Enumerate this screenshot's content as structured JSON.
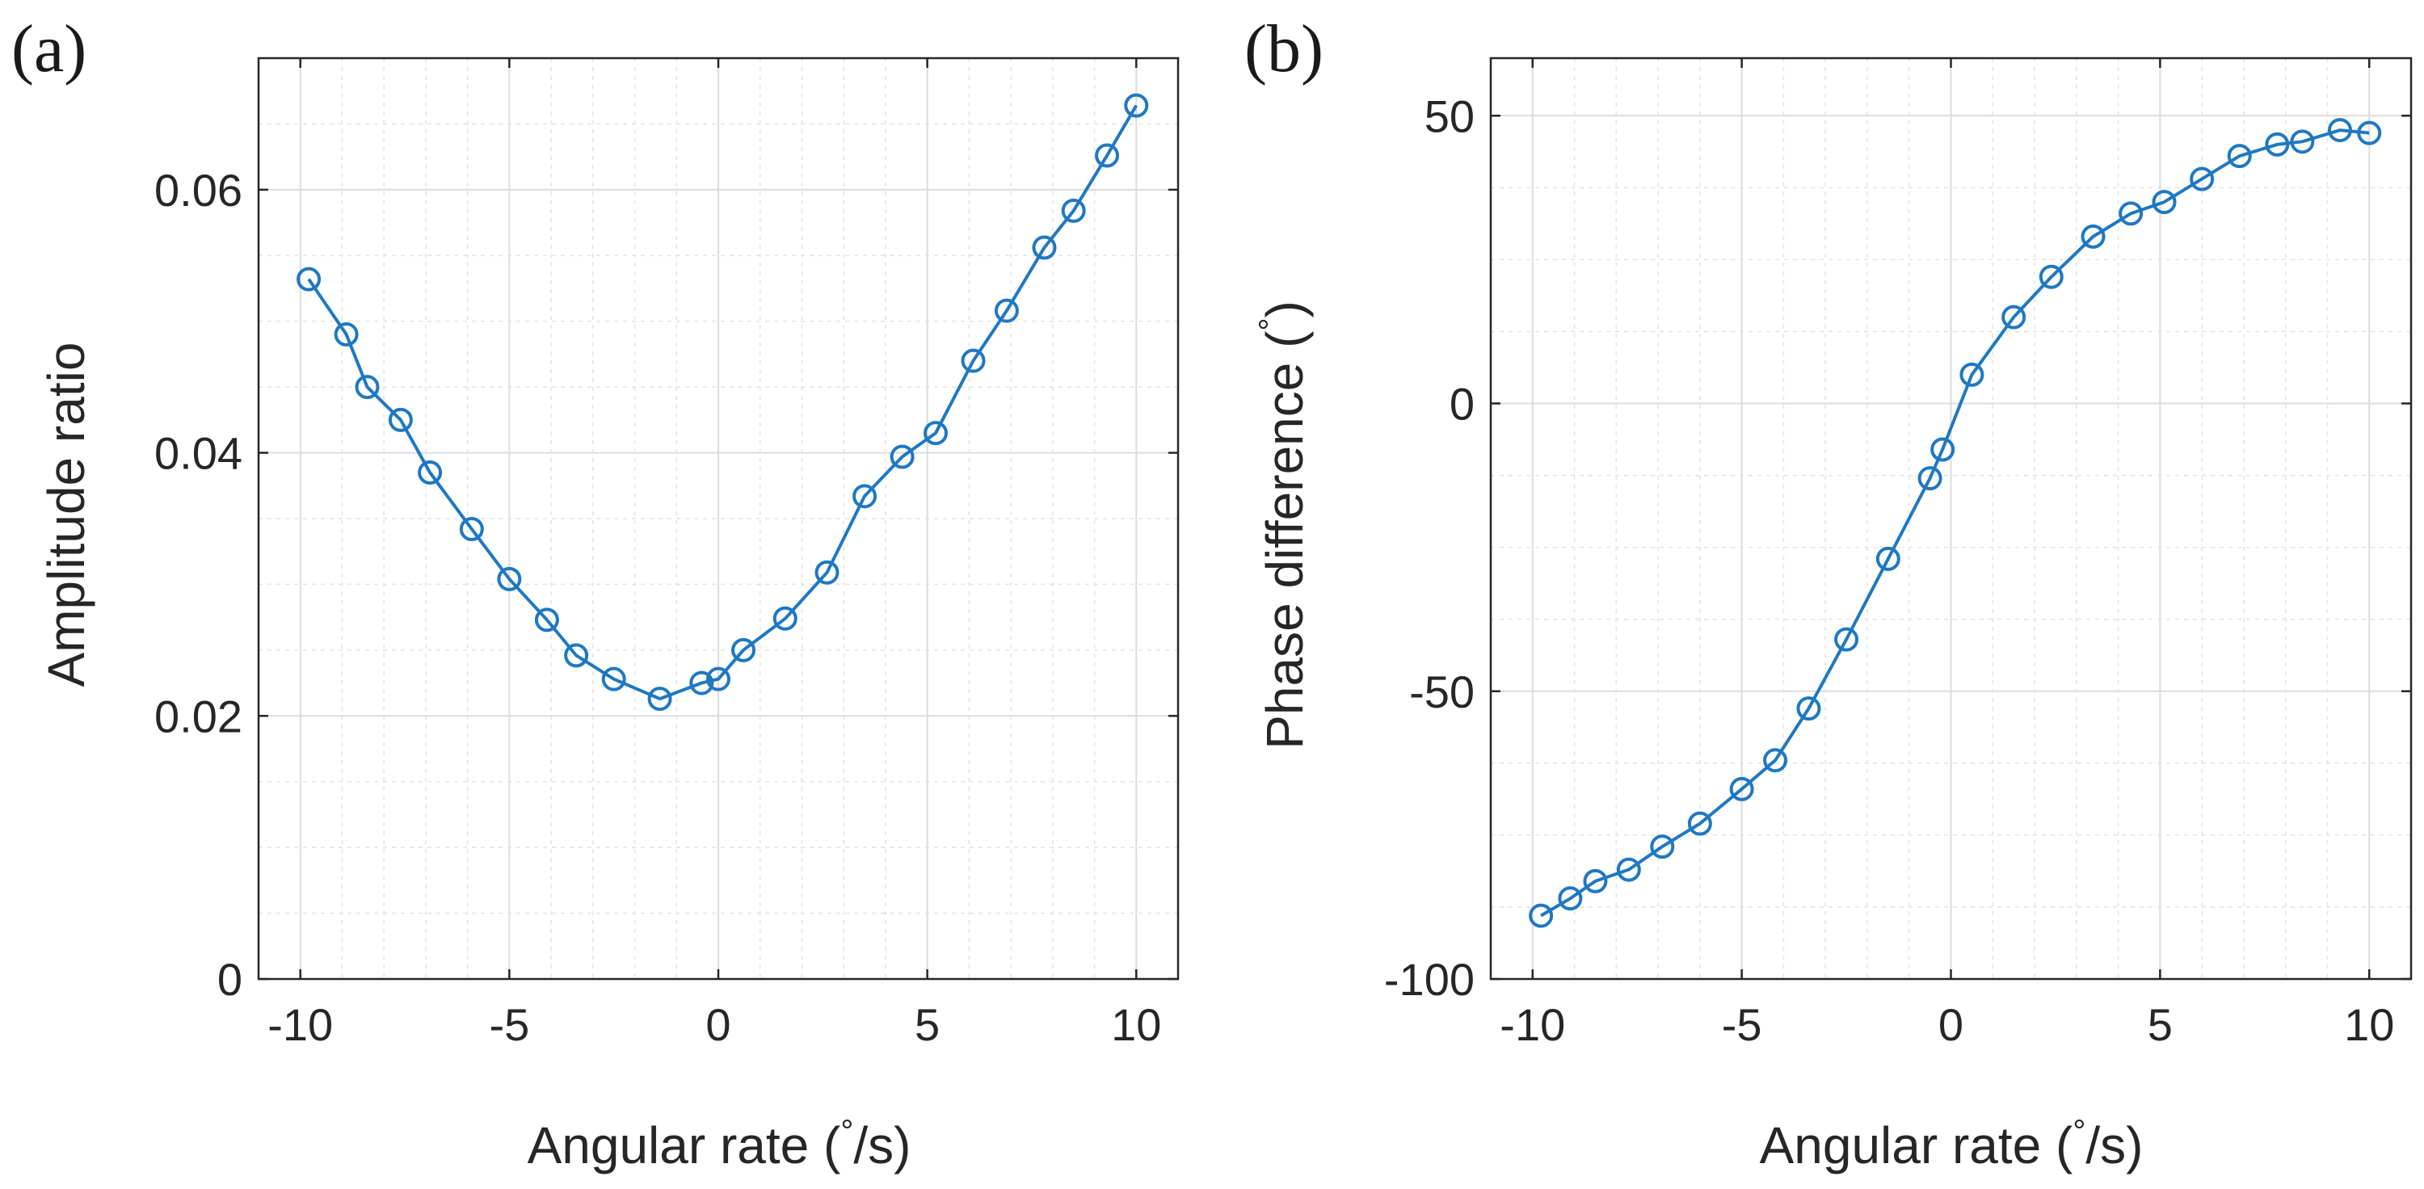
{
  "chart_data": [
    {
      "panel_label": "(a)",
      "type": "line",
      "marker": "circle",
      "xlabel_prefix": "Angular rate (",
      "xlabel_degree": "°",
      "xlabel_suffix": "/s)",
      "ylabel": "Amplitude ratio",
      "xlim": [
        -11,
        11
      ],
      "ylim": [
        0,
        0.07
      ],
      "xticks": [
        -10,
        -5,
        0,
        5,
        10
      ],
      "xtick_labels": [
        "-10",
        "-5",
        "0",
        "5",
        "10"
      ],
      "yticks": [
        0,
        0.02,
        0.04,
        0.06
      ],
      "ytick_labels": [
        "0",
        "0.02",
        "0.04",
        "0.06"
      ],
      "minor_ygrid_step": 0.005,
      "grid": true,
      "color": "#1f78c1",
      "x": [
        -9.8,
        -8.9,
        -8.4,
        -7.6,
        -6.9,
        -5.9,
        -5.0,
        -4.1,
        -3.4,
        -2.5,
        -1.4,
        -0.4,
        0.0,
        0.6,
        1.6,
        2.6,
        3.5,
        4.4,
        5.2,
        6.1,
        6.9,
        7.8,
        8.5,
        9.3,
        10.0
      ],
      "y": [
        0.0532,
        0.049,
        0.045,
        0.0425,
        0.0385,
        0.0342,
        0.0304,
        0.0273,
        0.0246,
        0.0228,
        0.0213,
        0.0225,
        0.0228,
        0.025,
        0.0274,
        0.0309,
        0.0367,
        0.0397,
        0.0415,
        0.047,
        0.0508,
        0.0556,
        0.0584,
        0.0626,
        0.0664
      ]
    },
    {
      "panel_label": "(b)",
      "type": "line",
      "marker": "circle",
      "xlabel_prefix": "Angular rate (",
      "xlabel_degree": "°",
      "xlabel_suffix": "/s)",
      "ylabel_prefix": "Phase difference (",
      "ylabel_degree": "°",
      "ylabel_suffix": ")",
      "xlim": [
        -11,
        11
      ],
      "ylim": [
        -100,
        60
      ],
      "xticks": [
        -10,
        -5,
        0,
        5,
        10
      ],
      "xtick_labels": [
        "-10",
        "-5",
        "0",
        "5",
        "10"
      ],
      "yticks": [
        -100,
        -50,
        0,
        50
      ],
      "ytick_labels": [
        "-100",
        "-50",
        "0",
        "50"
      ],
      "minor_ygrid_step": 12.5,
      "grid": true,
      "color": "#1f78c1",
      "x": [
        -9.8,
        -9.1,
        -8.5,
        -7.7,
        -6.9,
        -6.0,
        -5.0,
        -4.2,
        -3.4,
        -2.5,
        -1.5,
        -0.5,
        -0.2,
        0.5,
        1.5,
        2.4,
        3.4,
        4.3,
        5.1,
        6.0,
        6.9,
        7.8,
        8.4,
        9.3,
        10.0
      ],
      "y": [
        -89,
        -86,
        -83,
        -81,
        -77,
        -73,
        -67,
        -62,
        -53,
        -41,
        -27,
        -13,
        -8,
        5,
        15,
        22,
        29,
        33,
        35,
        39,
        43,
        45,
        45.5,
        47.5,
        47
      ]
    }
  ]
}
